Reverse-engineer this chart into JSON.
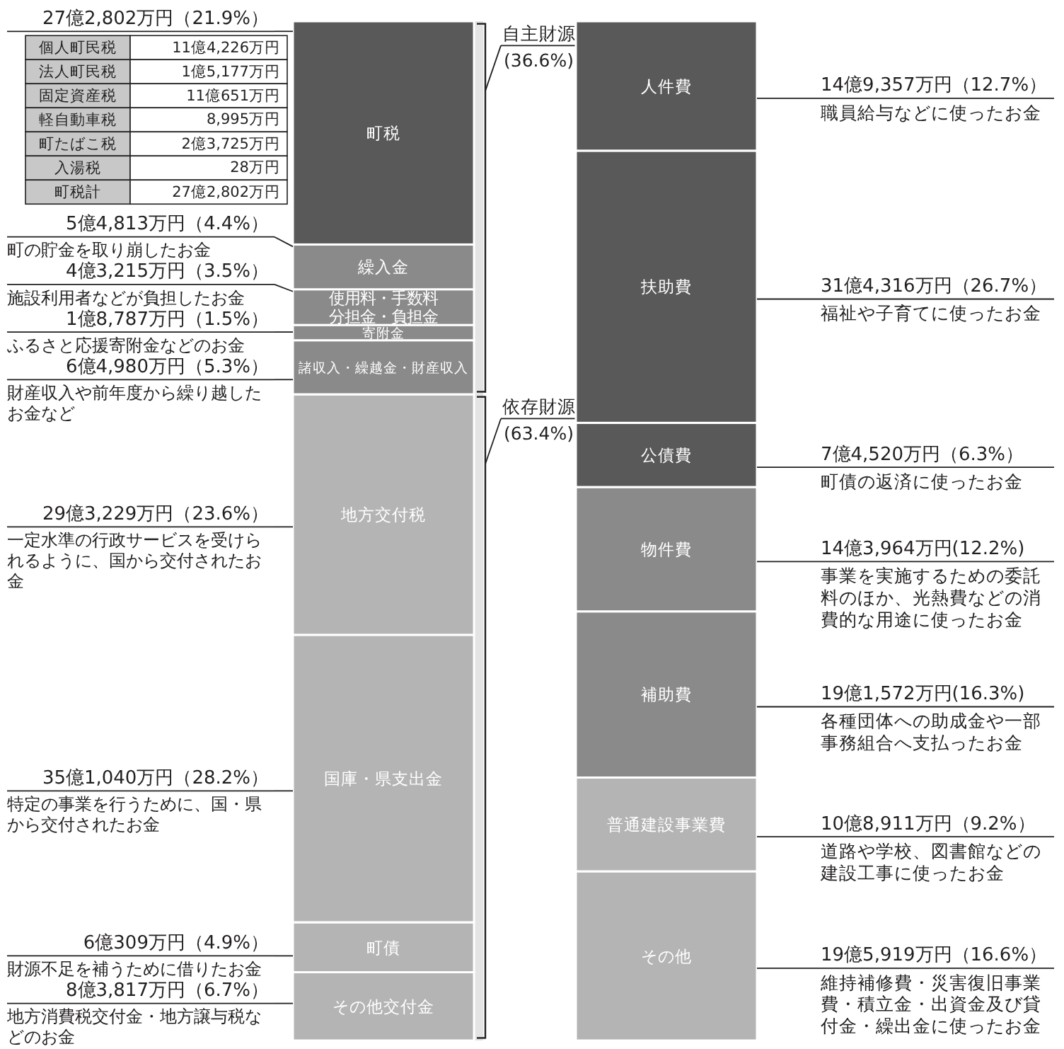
{
  "chart_data": [
    {
      "type": "bar",
      "stacked": true,
      "categories": [
        null
      ],
      "series": [
        {
          "name": "その他交付金",
          "color": "#b4b4b4",
          "values": [
            6.7
          ],
          "value_labels": [
            "8億3,817万円（6.7%）"
          ]
        },
        {
          "name": "町債",
          "color": "#b4b4b4",
          "values": [
            4.9
          ],
          "value_labels": [
            "6億309万円（4.9%）"
          ]
        },
        {
          "name": "国庫・県支出金",
          "color": "#b4b4b4",
          "values": [
            28.2
          ],
          "value_labels": [
            "35億1,040万円（28.2%）"
          ]
        },
        {
          "name": "地方交付税",
          "color": "#b4b4b4",
          "values": [
            23.6
          ],
          "value_labels": [
            "29億3,229万円（23.6%）"
          ]
        },
        {
          "name": "諸収入・繰越金・財産収入",
          "color": "#8a8a8a",
          "values": [
            5.3
          ],
          "value_labels": [
            "6億4,980万円（5.3%）"
          ]
        },
        {
          "name": "寄附金",
          "color": "#8a8a8a",
          "values": [
            1.5
          ],
          "value_labels": [
            "1億8,787万円（1.5%）"
          ]
        },
        {
          "name": "使用料・手数料分担金・負担金",
          "color": "#8a8a8a",
          "values": [
            3.5
          ],
          "value_labels": [
            "4億3,215万円（3.5%）"
          ]
        },
        {
          "name": "繰入金",
          "color": "#8a8a8a",
          "values": [
            4.4
          ],
          "value_labels": [
            "5億4,813万円（4.4%）"
          ]
        },
        {
          "name": "町税",
          "color": "#595959",
          "values": [
            21.9
          ],
          "value_labels": [
            "27億2,802万円（21.9%）"
          ]
        }
      ],
      "bands": [
        {
          "axis": "y",
          "from": 63.4,
          "to": 100,
          "label": "自主財源(36.6%)"
        },
        {
          "axis": "y",
          "from": 0,
          "to": 63.4,
          "label": "依存財源(63.4%)"
        }
      ],
      "annotations": [
        "町の貯金を取り崩したお金",
        "施設利用者などが負担したお金",
        "ふるさと応援寄附金などのお金",
        "財産収入や前年度から繰り越したお金など",
        "一定水準の行政サービスを受けられるように、国から交付されたお金",
        "特定の事業を行うために、国・県から交付されたお金",
        "財源不足を補うために借りたお金",
        "地方消費税交付金・地方譲与税などのお金"
      ]
    },
    {
      "type": "bar",
      "stacked": true,
      "categories": [
        null
      ],
      "series": [
        {
          "name": "その他",
          "color": "#b4b4b4",
          "values": [
            16.6
          ],
          "value_labels": [
            "19億5,919万円（16.6%）"
          ]
        },
        {
          "name": "普通建設事業費",
          "color": "#b4b4b4",
          "values": [
            9.2
          ],
          "value_labels": [
            "10億8,911万円（9.2%）"
          ]
        },
        {
          "name": "補助費",
          "color": "#8a8a8a",
          "values": [
            16.3
          ],
          "value_labels": [
            "19億1,572万円(16.3%)"
          ]
        },
        {
          "name": "物件費",
          "color": "#8a8a8a",
          "values": [
            12.2
          ],
          "value_labels": [
            "14億3,964万円(12.2%)"
          ]
        },
        {
          "name": "公債費",
          "color": "#595959",
          "values": [
            6.3
          ],
          "value_labels": [
            "7億4,520万円（6.3%）"
          ]
        },
        {
          "name": "扶助費",
          "color": "#595959",
          "values": [
            26.7
          ],
          "value_labels": [
            "31億4,316万円（26.7%）"
          ]
        },
        {
          "name": "人件費",
          "color": "#595959",
          "values": [
            12.7
          ],
          "value_labels": [
            "14億9,357万円（12.7%）"
          ]
        }
      ],
      "annotations": [
        "職員給与などに使ったお金",
        "福祉や子育てに使ったお金",
        "町債の返済に使ったお金",
        "事業を実施するための委託料のほか、光熱費などの消費的な用途に使ったお金",
        "各種団体への助成金や一部事務組合へ支払ったお金",
        "道路や学校、図書館などの建設工事に使ったお金",
        "維持補修費・災害復旧事業費・積立金・出資金及び貸付金・繰出金に使ったお金"
      ]
    },
    {
      "type": "other",
      "annotations": [
        "個人町民税",
        "11億4,226万円",
        "法人町民税",
        "1億5,177万円",
        "固定資産税",
        "11億651万円",
        "軽自動車税",
        "8,995万円",
        "町たばこ税",
        "2億3,725万円",
        "入湯税",
        "28万円",
        "町税計",
        "27億2,802万円"
      ]
    }
  ]
}
